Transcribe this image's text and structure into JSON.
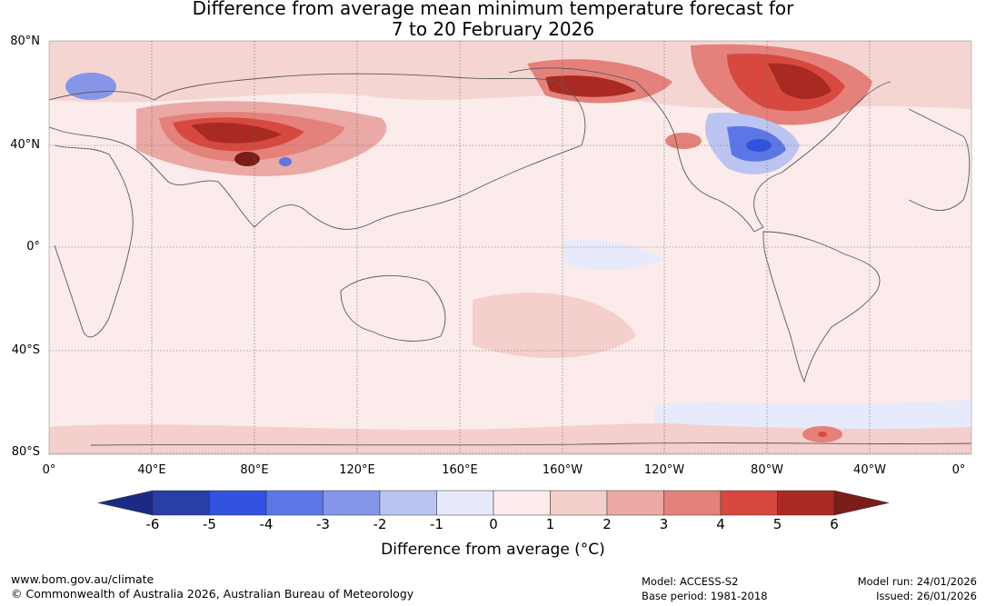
{
  "title": {
    "line1": "Difference from average mean minimum temperature forecast for",
    "line2": "7 to 20 February 2026"
  },
  "map": {
    "lat_labels": [
      "80°N",
      "40°N",
      "0°",
      "40°S",
      "80°S"
    ],
    "lon_labels": [
      "0°",
      "40°E",
      "80°E",
      "120°E",
      "160°E",
      "160°W",
      "120°W",
      "80°W",
      "40°W",
      "0°"
    ],
    "colors": {
      "land_outline": "#5a5a5a",
      "grid": "#666666"
    },
    "anomaly_regions": [
      {
        "name": "central-asia-warm",
        "lon": 80,
        "lat": 45,
        "anomaly": 5
      },
      {
        "name": "mongolia-hot",
        "lon": 88,
        "lat": 42,
        "anomaly": 6
      },
      {
        "name": "alaska-warm",
        "lon": 208,
        "lat": 65,
        "anomaly": 5
      },
      {
        "name": "hudson-bay-warm",
        "lon": 275,
        "lat": 65,
        "anomaly": 5
      },
      {
        "name": "eastern-us-cold",
        "lon": 282,
        "lat": 38,
        "anomaly": -3
      },
      {
        "name": "scandinavia-cold",
        "lon": 20,
        "lat": 62,
        "anomaly": -2
      },
      {
        "name": "tibet-cold",
        "lon": 91,
        "lat": 32,
        "anomaly": -3
      },
      {
        "name": "antarctic-peninsula-warm",
        "lon": 300,
        "lat": -70,
        "anomaly": 4
      }
    ]
  },
  "colorbar": {
    "ticks": [
      "-6",
      "-5",
      "-4",
      "-3",
      "-2",
      "-1",
      "0",
      "1",
      "2",
      "3",
      "4",
      "5",
      "6"
    ],
    "colors": [
      "#283ea8",
      "#3152e0",
      "#5d76e6",
      "#8596e9",
      "#bcc4f1",
      "#e7eafa",
      "#fbebea",
      "#f4cfcc",
      "#eaa9a5",
      "#e4817a",
      "#d7493f",
      "#a92a22"
    ],
    "low_extend_color": "#1c2a85",
    "high_extend_color": "#7a1c17",
    "label": "Difference from average (°C)"
  },
  "footer": {
    "website": "www.bom.gov.au/climate",
    "copyright": "© Commonwealth of Australia 2026, Australian Bureau of Meteorology",
    "model": "Model: ACCESS-S2",
    "base_period": "Base period: 1981-2018",
    "model_run": "Model run: 24/01/2026",
    "issued": "Issued: 26/01/2026"
  }
}
